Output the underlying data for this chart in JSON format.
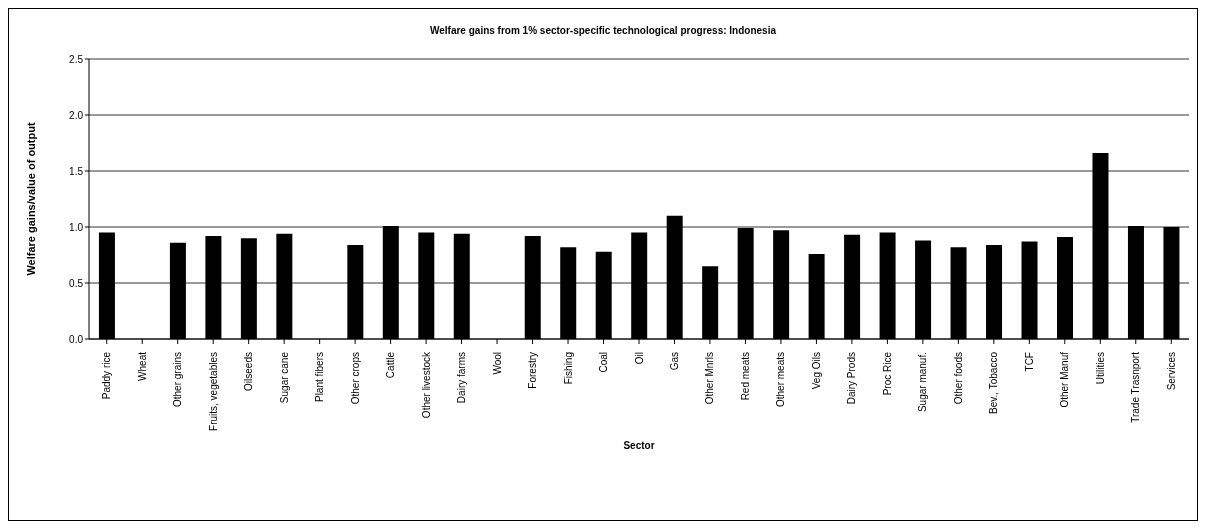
{
  "chart_data": {
    "type": "bar",
    "title": "Welfare gains from 1% sector-specific technological progress: Indonesia",
    "xlabel": "Sector",
    "ylabel": "Welfare gains/value of output",
    "categories": [
      "Paddy rice",
      "Wheat",
      "Other grains",
      "Fruits, vegetables",
      "Oilseeds",
      "Sugar cane",
      "Plant fibers",
      "Other crops",
      "Cattle",
      "Other livestock",
      "Dairy farms",
      "Wool",
      "Forestry",
      "Fishing",
      "Coal",
      "Oil",
      "Gas",
      "Other Mnrls",
      "Red meats",
      "Other meats",
      "Veg Oils",
      "Dairy Prods",
      "Proc Rice",
      "Sugar manuf.",
      "Other foods",
      "Bev., Tobacco",
      "TCF",
      "Other Manuf",
      "Utilities",
      "Trade Trasnport",
      "Services"
    ],
    "values": [
      0.95,
      0,
      0.86,
      0.92,
      0.9,
      0.94,
      0,
      0.84,
      1.01,
      0.95,
      0.94,
      0,
      0.92,
      0.82,
      0.78,
      0.95,
      1.1,
      0.65,
      0.99,
      0.97,
      0.76,
      0.93,
      0.95,
      0.88,
      0.82,
      0.84,
      0.87,
      0.91,
      1.66,
      1.01,
      1.0
    ],
    "color": "#000000",
    "ylim": [
      0,
      2.5
    ],
    "yticks": [
      {
        "value": 0,
        "label": "0.0"
      },
      {
        "value": 0.5,
        "label": "0.5"
      },
      {
        "value": 1,
        "label": "1.0"
      },
      {
        "value": 1.5,
        "label": "1.5"
      },
      {
        "value": 2,
        "label": "2.0"
      },
      {
        "value": 2.5,
        "label": "2.5"
      }
    ],
    "grid": "y"
  }
}
